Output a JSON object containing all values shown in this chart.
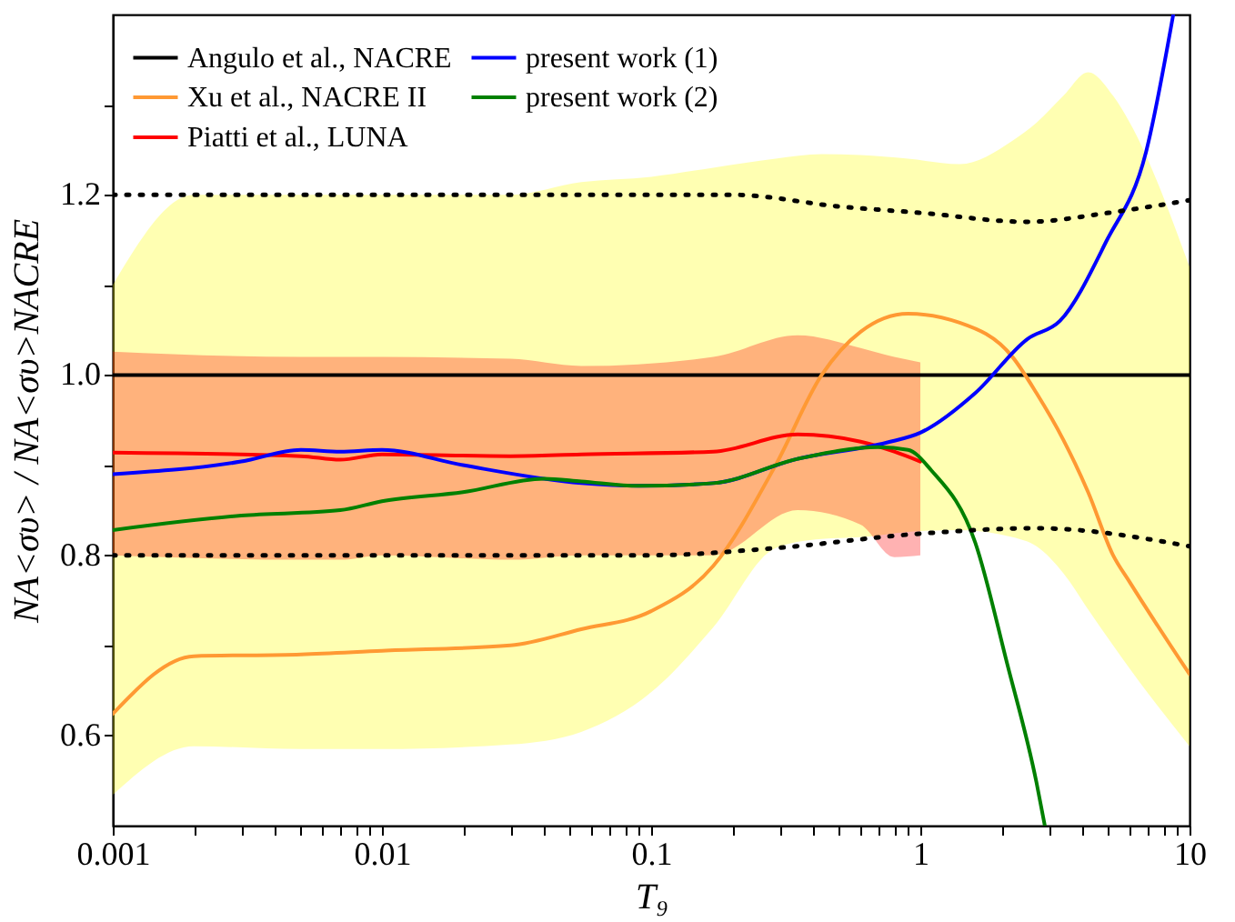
{
  "chart_data": {
    "type": "line",
    "xlabel": "T₉",
    "ylabel": "NA<συ> / NA<συ>NACRE",
    "log": "x",
    "xlim": [
      0.001,
      10
    ],
    "ylim": [
      0.5,
      1.4
    ],
    "xticks": [
      0.001,
      {
        "value": 0.002,
        "label": null
      },
      {
        "value": 0.003,
        "label": null
      },
      {
        "value": 0.004,
        "label": null
      },
      {
        "value": 0.005,
        "label": null
      },
      {
        "value": 0.006,
        "label": null
      },
      {
        "value": 0.007,
        "label": null
      },
      {
        "value": 0.008,
        "label": null
      },
      {
        "value": 0.009,
        "label": null
      },
      0.01,
      {
        "value": 0.02,
        "label": null
      },
      {
        "value": 0.03,
        "label": null
      },
      {
        "value": 0.04,
        "label": null
      },
      {
        "value": 0.05,
        "label": null
      },
      {
        "value": 0.06,
        "label": null
      },
      {
        "value": 0.07,
        "label": null
      },
      {
        "value": 0.08,
        "label": null
      },
      {
        "value": 0.09,
        "label": null
      },
      0.1,
      {
        "value": 0.2,
        "label": null
      },
      {
        "value": 0.3,
        "label": null
      },
      {
        "value": 0.4,
        "label": null
      },
      {
        "value": 0.5,
        "label": null
      },
      {
        "value": 0.6,
        "label": null
      },
      {
        "value": 0.7,
        "label": null
      },
      {
        "value": 0.8,
        "label": null
      },
      {
        "value": 0.9,
        "label": null
      },
      1,
      {
        "value": 2,
        "label": null
      },
      {
        "value": 3,
        "label": null
      },
      {
        "value": 4,
        "label": null
      },
      {
        "value": 5,
        "label": null
      },
      {
        "value": 6,
        "label": null
      },
      {
        "value": 7,
        "label": null
      },
      {
        "value": 8,
        "label": null
      },
      {
        "value": 9,
        "label": null
      },
      10
    ],
    "yticks": [
      0.6,
      {
        "value": 0.7,
        "label": null
      },
      0.8,
      {
        "value": 0.9,
        "label": null
      },
      {
        "value": 1.0,
        "label": "1.0"
      },
      {
        "value": 1.1,
        "label": null
      },
      1.2,
      {
        "value": 1.3,
        "label": null
      }
    ],
    "legend": "top left",
    "grid": false,
    "marker": "none",
    "series": [
      {
        "name": "Angulo et al., NACRE",
        "color": "#000000",
        "x": [
          0.001,
          10
        ],
        "values": [
          1.0,
          1.0
        ]
      },
      {
        "name": "Xu et al., NACRE II",
        "color": "#ff9933",
        "x": [
          0.001,
          0.002,
          0.005,
          0.01,
          0.03,
          0.055,
          0.1,
          0.17,
          0.29,
          0.43,
          0.6,
          0.9,
          1.4,
          2.2,
          2.7,
          3.4,
          4.2,
          5.2,
          6,
          10
        ],
        "values": [
          0.624,
          0.688,
          0.69,
          0.694,
          0.7,
          0.718,
          0.738,
          0.788,
          0.9,
          1.0,
          1.048,
          1.068,
          1.058,
          1.02,
          0.98,
          0.928,
          0.87,
          0.8,
          0.77,
          0.668
        ],
        "upper": [
          1.1,
          1.2,
          1.2,
          1.2,
          1.2,
          1.214,
          1.22,
          1.23,
          1.24,
          1.245,
          1.244,
          1.24,
          1.234,
          1.26,
          1.28,
          1.31,
          1.336,
          1.31,
          1.28,
          1.12
        ],
        "lower": [
          0.534,
          0.588,
          0.585,
          0.585,
          0.59,
          0.604,
          0.648,
          0.72,
          0.808,
          0.818,
          0.82,
          0.826,
          0.828,
          0.82,
          0.81,
          0.78,
          0.74,
          0.7,
          0.674,
          0.588
        ]
      },
      {
        "name": "Piatti et al., LUNA",
        "color": "#ff0000",
        "x": [
          0.001,
          0.005,
          0.007,
          0.01,
          0.03,
          0.055,
          0.17,
          0.35,
          0.6,
          0.8,
          1
        ],
        "values": [
          0.914,
          0.91,
          0.906,
          0.912,
          0.91,
          0.912,
          0.915,
          0.934,
          0.926,
          0.915,
          0.904
        ],
        "upper": [
          1.026,
          1.02,
          1.02,
          1.02,
          1.018,
          1.01,
          1.02,
          1.044,
          1.03,
          1.02,
          1.014
        ],
        "lower": [
          0.8,
          0.795,
          0.795,
          0.8,
          0.795,
          0.8,
          0.8,
          0.85,
          0.834,
          0.798,
          0.8
        ]
      },
      {
        "name": "present work (1)",
        "color": "#0000ff",
        "x": [
          0.001,
          0.003,
          0.005,
          0.007,
          0.01,
          0.02,
          0.055,
          0.09,
          0.17,
          0.35,
          0.75,
          1,
          1.6,
          2.5,
          3.3,
          4.9,
          6.9,
          8.7
        ],
        "values": [
          0.89,
          0.904,
          0.917,
          0.915,
          0.917,
          0.9,
          0.88,
          0.877,
          0.88,
          0.907,
          0.925,
          0.936,
          0.98,
          1.04,
          1.06,
          1.148,
          1.248,
          1.4
        ]
      },
      {
        "name": "present work (2)",
        "color": "#008000",
        "x": [
          0.001,
          0.003,
          0.007,
          0.01,
          0.02,
          0.04,
          0.055,
          0.09,
          0.17,
          0.35,
          0.7,
          0.9,
          1.1,
          1.6,
          2.1,
          2.7,
          2.9
        ],
        "values": [
          0.828,
          0.844,
          0.85,
          0.86,
          0.87,
          0.885,
          0.882,
          0.877,
          0.88,
          0.907,
          0.92,
          0.917,
          0.894,
          0.814,
          0.68,
          0.548,
          0.5
        ]
      },
      {
        "color": "#000000",
        "line_style": "dotted",
        "x": [
          0.001,
          0.1,
          0.2,
          0.5,
          1,
          2.5,
          5,
          10
        ],
        "values": [
          1.2,
          1.2,
          1.2,
          1.187,
          1.18,
          1.17,
          1.18,
          1.194
        ]
      },
      {
        "color": "#000000",
        "line_style": "dotted",
        "x": [
          0.001,
          0.1,
          0.29,
          1,
          2.7,
          10
        ],
        "values": [
          0.8,
          0.8,
          0.808,
          0.824,
          0.83,
          0.81
        ]
      }
    ]
  }
}
